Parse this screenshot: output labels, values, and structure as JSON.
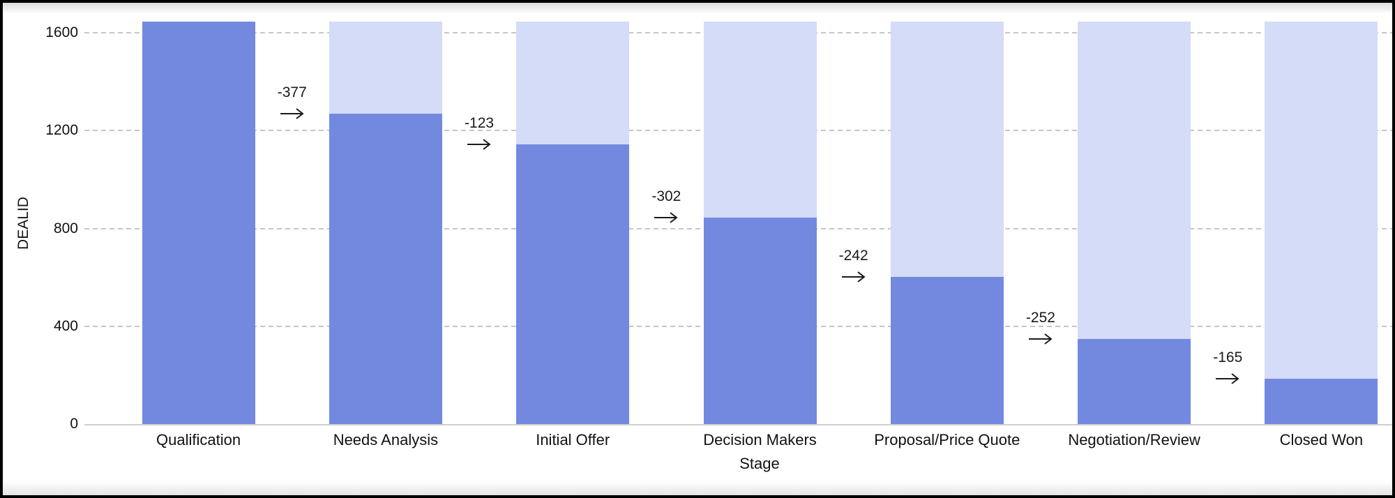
{
  "chart_data": {
    "type": "bar",
    "subtype": "funnel-stage-bars",
    "title": "",
    "xlabel": "Stage",
    "ylabel": "DEALID",
    "categories": [
      "Qualification",
      "Needs Analysis",
      "Initial Offer",
      "Decision Makers",
      "Proposal/Price Quote",
      "Negotiation/Review",
      "Closed Won"
    ],
    "series": [
      {
        "name": "deal-count",
        "values": [
          1645,
          1268,
          1145,
          843,
          601,
          349,
          184
        ]
      },
      {
        "name": "initial-total-background",
        "values": [
          1645,
          1645,
          1645,
          1645,
          1645,
          1645,
          1645
        ]
      }
    ],
    "stage_deltas": [
      -377,
      -123,
      -302,
      -242,
      -252,
      -165
    ],
    "yticks": [
      0,
      400,
      800,
      1200,
      1600
    ],
    "ylim": [
      0,
      1650
    ],
    "grid": "horizontal-dashed",
    "legend": "none",
    "colors": {
      "bar": "#7389E0",
      "bar_background": "#D5DCF7",
      "gridline": "#C6C6C6",
      "axis_line": "#CFCFCF",
      "text": "#111111",
      "annotation": "#1A1A1A"
    }
  }
}
